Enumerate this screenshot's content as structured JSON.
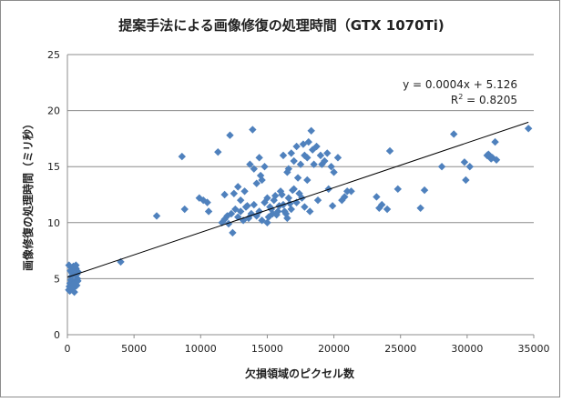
{
  "chart_data": {
    "type": "scatter",
    "title": "提案手法による画像修復の処理時間（GTX 1070Ti)",
    "xlabel": "欠損領域のピクセル数",
    "ylabel": "画像修復の処理時間（ミリ秒）",
    "xlim": [
      0,
      35000
    ],
    "ylim": [
      0,
      25
    ],
    "xticks": [
      "0",
      "5000",
      "10000",
      "15000",
      "20000",
      "25000",
      "30000",
      "35000"
    ],
    "yticks": [
      "0",
      "5",
      "10",
      "15",
      "20",
      "25"
    ],
    "grid": "horizontal",
    "marker_color": "#4f81bd",
    "trendline": {
      "slope": 0.0004,
      "intercept": 5.126,
      "equation": "y = 0.0004x + 5.126",
      "r2_prefix": "R",
      "r2_sup": "2",
      "r2_suffix": " = 0.8205"
    },
    "points": [
      [
        100,
        4.0
      ],
      [
        150,
        4.3
      ],
      [
        200,
        4.6
      ],
      [
        250,
        4.9
      ],
      [
        300,
        5.2
      ],
      [
        350,
        5.5
      ],
      [
        400,
        5.8
      ],
      [
        450,
        6.1
      ],
      [
        500,
        4.2
      ],
      [
        550,
        4.7
      ],
      [
        600,
        5.3
      ],
      [
        650,
        5.9
      ],
      [
        700,
        4.4
      ],
      [
        750,
        5.0
      ],
      [
        800,
        5.6
      ],
      [
        120,
        6.2
      ],
      [
        180,
        3.9
      ],
      [
        260,
        4.1
      ],
      [
        380,
        6.0
      ],
      [
        520,
        3.8
      ],
      [
        640,
        6.2
      ],
      [
        720,
        5.4
      ],
      [
        780,
        4.8
      ],
      [
        220,
        5.7
      ],
      [
        460,
        4.5
      ],
      [
        4000,
        6.5
      ],
      [
        6700,
        10.6
      ],
      [
        8600,
        15.9
      ],
      [
        8800,
        11.2
      ],
      [
        9900,
        12.2
      ],
      [
        10200,
        12.0
      ],
      [
        10500,
        11.8
      ],
      [
        10600,
        11.0
      ],
      [
        11300,
        16.3
      ],
      [
        11800,
        12.5
      ],
      [
        12200,
        17.8
      ],
      [
        12500,
        12.6
      ],
      [
        12800,
        13.2
      ],
      [
        13000,
        12.0
      ],
      [
        13300,
        12.8
      ],
      [
        13500,
        11.5
      ],
      [
        13700,
        15.2
      ],
      [
        13900,
        18.3
      ],
      [
        14000,
        14.8
      ],
      [
        14200,
        13.5
      ],
      [
        14400,
        15.8
      ],
      [
        14500,
        14.2
      ],
      [
        14600,
        13.8
      ],
      [
        14800,
        15.0
      ],
      [
        15000,
        12.2
      ],
      [
        11600,
        10.0
      ],
      [
        11800,
        10.3
      ],
      [
        12000,
        10.6
      ],
      [
        12100,
        9.9
      ],
      [
        12300,
        10.8
      ],
      [
        12400,
        9.1
      ],
      [
        12600,
        11.2
      ],
      [
        12800,
        10.5
      ],
      [
        13000,
        11.0
      ],
      [
        13200,
        10.2
      ],
      [
        13400,
        11.4
      ],
      [
        13600,
        10.4
      ],
      [
        13800,
        10.8
      ],
      [
        14000,
        11.6
      ],
      [
        14200,
        10.6
      ],
      [
        14400,
        11.0
      ],
      [
        14600,
        10.2
      ],
      [
        14800,
        11.8
      ],
      [
        15000,
        10.0
      ],
      [
        15200,
        11.4
      ],
      [
        15400,
        10.8
      ],
      [
        15600,
        12.4
      ],
      [
        15800,
        11.0
      ],
      [
        16000,
        12.8
      ],
      [
        16200,
        11.6
      ],
      [
        16400,
        10.8
      ],
      [
        16600,
        12.2
      ],
      [
        16800,
        11.2
      ],
      [
        17000,
        13.0
      ],
      [
        17200,
        11.8
      ],
      [
        17400,
        12.6
      ],
      [
        17600,
        12.2
      ],
      [
        17800,
        11.4
      ],
      [
        18000,
        13.8
      ],
      [
        18200,
        11.0
      ],
      [
        15100,
        10.5
      ],
      [
        15300,
        11.2
      ],
      [
        15500,
        12.0
      ],
      [
        15700,
        10.7
      ],
      [
        15900,
        11.5
      ],
      [
        16100,
        12.5
      ],
      [
        16300,
        11.0
      ],
      [
        16500,
        10.4
      ],
      [
        16700,
        11.7
      ],
      [
        16900,
        12.9
      ],
      [
        16500,
        14.5
      ],
      [
        16800,
        16.2
      ],
      [
        17000,
        15.5
      ],
      [
        17200,
        16.8
      ],
      [
        17500,
        15.2
      ],
      [
        17800,
        16.0
      ],
      [
        18000,
        15.8
      ],
      [
        18300,
        18.2
      ],
      [
        18500,
        15.2
      ],
      [
        18700,
        16.8
      ],
      [
        19000,
        16.0
      ],
      [
        19300,
        15.5
      ],
      [
        19500,
        16.2
      ],
      [
        19800,
        15.0
      ],
      [
        20000,
        14.5
      ],
      [
        20300,
        15.8
      ],
      [
        20600,
        12.0
      ],
      [
        20800,
        12.3
      ],
      [
        21000,
        12.8
      ],
      [
        18800,
        12.0
      ],
      [
        16200,
        16.0
      ],
      [
        16600,
        14.8
      ],
      [
        17300,
        14.0
      ],
      [
        17700,
        17.0
      ],
      [
        18100,
        17.2
      ],
      [
        18400,
        16.5
      ],
      [
        19100,
        15.2
      ],
      [
        19600,
        13.0
      ],
      [
        19900,
        11.5
      ],
      [
        21300,
        12.8
      ],
      [
        23200,
        12.3
      ],
      [
        23400,
        11.3
      ],
      [
        23600,
        11.6
      ],
      [
        24000,
        11.2
      ],
      [
        24200,
        16.4
      ],
      [
        24800,
        13.0
      ],
      [
        26500,
        11.3
      ],
      [
        26800,
        12.9
      ],
      [
        28100,
        15.0
      ],
      [
        29000,
        17.9
      ],
      [
        29800,
        15.4
      ],
      [
        30200,
        15.0
      ],
      [
        31500,
        16.0
      ],
      [
        31800,
        15.7
      ],
      [
        32100,
        17.2
      ],
      [
        32200,
        15.6
      ],
      [
        34600,
        18.4
      ],
      [
        29900,
        13.8
      ],
      [
        31600,
        16.1
      ],
      [
        31900,
        15.8
      ]
    ]
  }
}
